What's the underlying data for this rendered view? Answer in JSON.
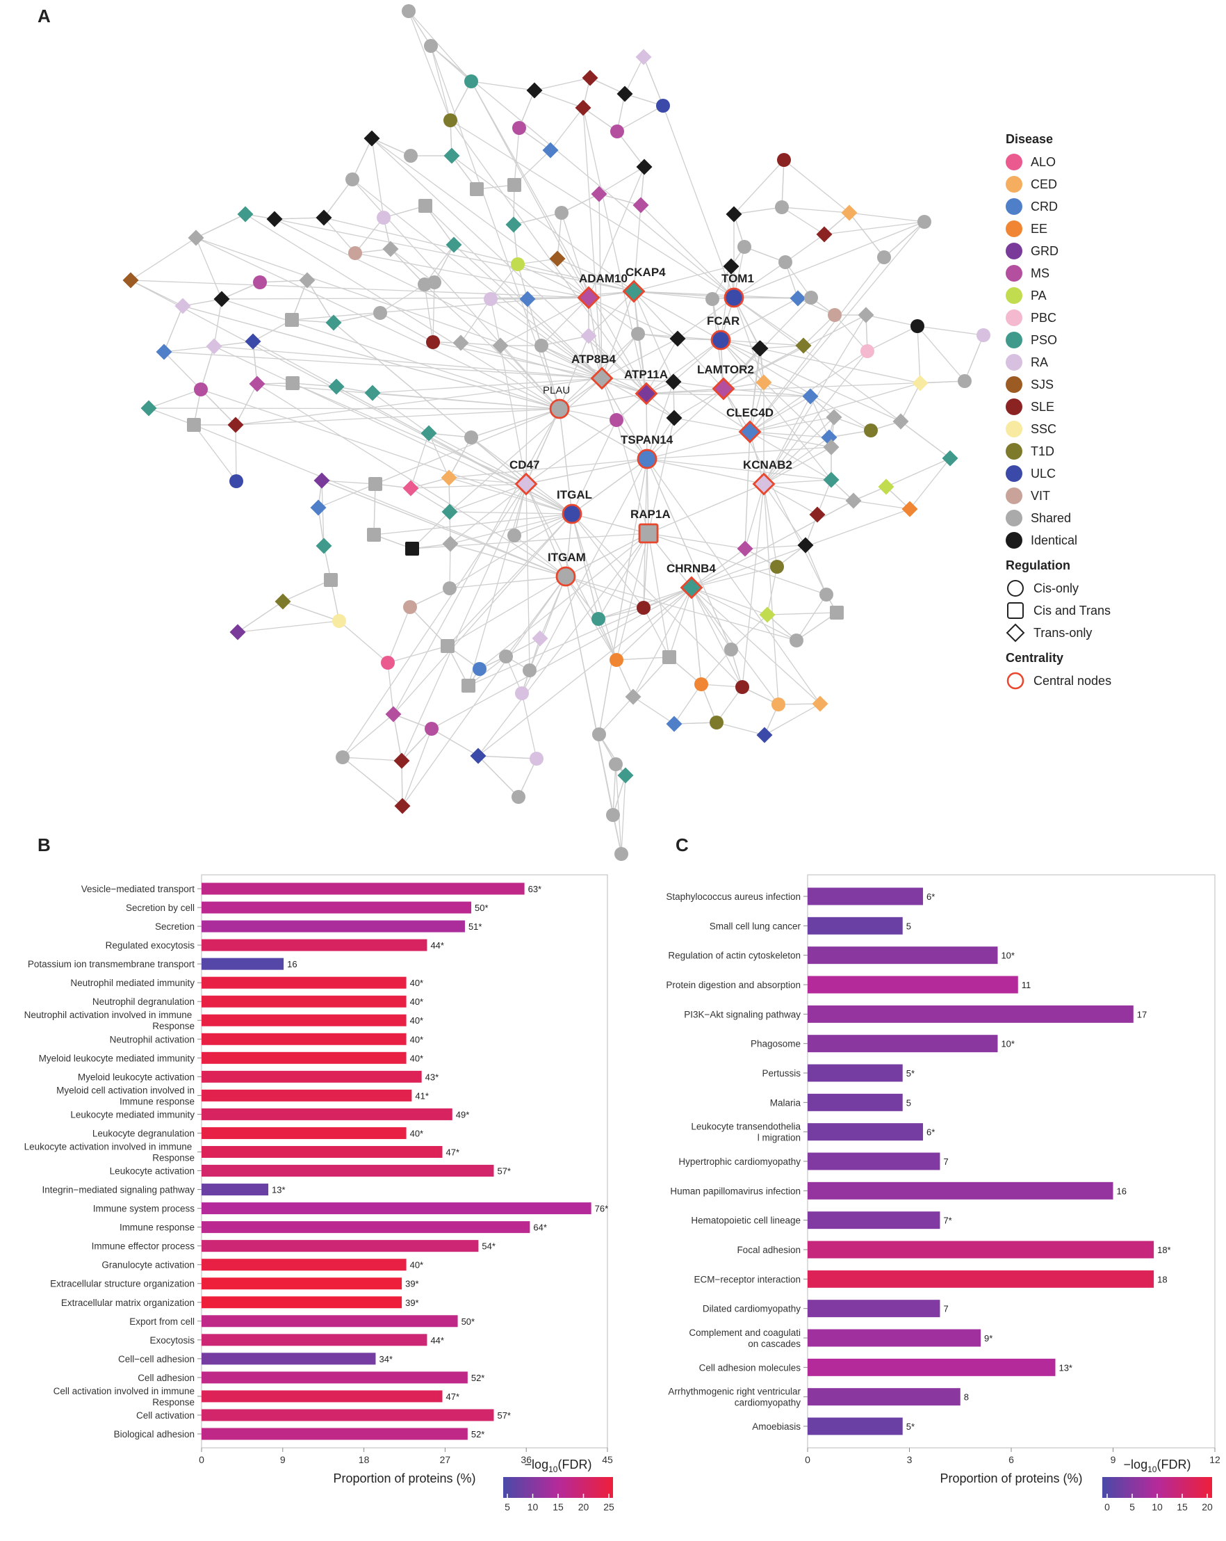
{
  "panel_labels": {
    "a": "A",
    "b": "B",
    "c": "C"
  },
  "network": {
    "central_nodes": [
      {
        "label": "ADAM10",
        "shape": "diamond",
        "fill": "#b44fa0"
      },
      {
        "label": "CKAP4",
        "shape": "diamond",
        "fill": "#3f9a8c"
      },
      {
        "label": "TOM1",
        "shape": "circle",
        "fill": "#3b4aa8"
      },
      {
        "label": "FCAR",
        "shape": "circle",
        "fill": "#3b4aa8"
      },
      {
        "label": "ATP8B4",
        "shape": "diamond",
        "fill": "#aaaaaa"
      },
      {
        "label": "ATP11A",
        "shape": "diamond",
        "fill": "#7a3a9a"
      },
      {
        "label": "LAMTOR2",
        "shape": "diamond",
        "fill": "#b44fa0"
      },
      {
        "label": "PLAU",
        "shape": "circle",
        "fill": "#aaaaaa"
      },
      {
        "label": "CLEC4D",
        "shape": "diamond",
        "fill": "#4f7fc9"
      },
      {
        "label": "TSPAN14",
        "shape": "circle",
        "fill": "#4f7fc9"
      },
      {
        "label": "CD47",
        "shape": "diamond",
        "fill": "#d7c0e0"
      },
      {
        "label": "KCNAB2",
        "shape": "diamond",
        "fill": "#d7c0e0"
      },
      {
        "label": "ITGAL",
        "shape": "circle",
        "fill": "#3b4aa8"
      },
      {
        "label": "RAP1A",
        "shape": "square",
        "fill": "#aaaaaa"
      },
      {
        "label": "ITGAM",
        "shape": "circle",
        "fill": "#aaaaaa"
      },
      {
        "label": "CHRNB4",
        "shape": "diamond",
        "fill": "#3f9a8c"
      }
    ]
  },
  "legend": {
    "disease_title": "Disease",
    "diseases": [
      {
        "name": "ALO",
        "color": "#ea5a8f"
      },
      {
        "name": "CED",
        "color": "#f5ad5f"
      },
      {
        "name": "CRD",
        "color": "#4f7fc9"
      },
      {
        "name": "EE",
        "color": "#f08633"
      },
      {
        "name": "GRD",
        "color": "#7a3a9a"
      },
      {
        "name": "MS",
        "color": "#b44fa0"
      },
      {
        "name": "PA",
        "color": "#c2dc4f"
      },
      {
        "name": "PBC",
        "color": "#f4b8cf"
      },
      {
        "name": "PSO",
        "color": "#3f9a8c"
      },
      {
        "name": "RA",
        "color": "#d7c0e0"
      },
      {
        "name": "SJS",
        "color": "#9c5b22"
      },
      {
        "name": "SLE",
        "color": "#8b2323"
      },
      {
        "name": "SSC",
        "color": "#f8eaa0"
      },
      {
        "name": "T1D",
        "color": "#7d7a2c"
      },
      {
        "name": "ULC",
        "color": "#3b4aa8"
      },
      {
        "name": "VIT",
        "color": "#c9a39a"
      },
      {
        "name": "Shared",
        "color": "#aaaaaa"
      },
      {
        "name": "Identical",
        "color": "#1a1a1a"
      }
    ],
    "regulation_title": "Regulation",
    "regulation": [
      {
        "name": "Cis-only",
        "shape": "circle"
      },
      {
        "name": "Cis and Trans",
        "shape": "square"
      },
      {
        "name": "Trans-only",
        "shape": "diamond"
      }
    ],
    "centrality_title": "Centrality",
    "centrality": [
      {
        "name": "Central nodes"
      }
    ]
  },
  "chart_data": [
    {
      "type": "bar",
      "orientation": "horizontal",
      "panel": "B",
      "categories": [
        "Vesicle−mediated transport",
        "Secretion by cell",
        "Secretion",
        "Regulated exocytosis",
        "Potassium ion transmembrane transport",
        "Neutrophil mediated immunity",
        "Neutrophil degranulation",
        "Neutrophil activation involved in immune Response",
        "Neutrophil activation",
        "Myeloid leukocyte mediated immunity",
        "Myeloid leukocyte activation",
        "Myeloid cell activation involved in Immune response",
        "Leukocyte mediated immunity",
        "Leukocyte degranulation",
        "Leukocyte activation involved in immune Response",
        "Leukocyte activation",
        "Integrin−mediated signaling pathway",
        "Immune system process",
        "Immune response",
        "Immune effector process",
        "Granulocyte activation",
        "Extracellular structure organization",
        "Extracellular matrix organization",
        "Export from cell",
        "Exocytosis",
        "Cell−cell adhesion",
        "Cell adhesion",
        "Cell activation involved in immune Response",
        "Cell activation",
        "Biological adhesion"
      ],
      "values": [
        35.8,
        29.9,
        29.2,
        25.0,
        9.1,
        22.7,
        22.7,
        22.7,
        22.7,
        22.7,
        24.4,
        23.3,
        27.8,
        22.7,
        26.7,
        32.4,
        7.4,
        43.2,
        36.4,
        30.7,
        22.7,
        22.2,
        22.2,
        28.4,
        25.0,
        19.3,
        29.5,
        26.7,
        32.4,
        29.5
      ],
      "counts": [
        "63*",
        "50*",
        "51*",
        "44*",
        "16",
        "40*",
        "40*",
        "40*",
        "40*",
        "40*",
        "43*",
        "41*",
        "49*",
        "40*",
        "47*",
        "57*",
        "13*",
        "76*",
        "64*",
        "54*",
        "40*",
        "39*",
        "39*",
        "50*",
        "44*",
        "34*",
        "52*",
        "47*",
        "57*",
        "52*"
      ],
      "neg_log10_fdr": [
        17,
        16,
        14,
        21,
        6,
        24,
        24,
        24,
        24,
        24,
        22,
        23,
        21,
        24,
        22,
        20,
        8,
        15,
        16,
        19,
        24,
        25,
        25,
        17,
        19,
        9,
        17,
        22,
        20,
        17
      ],
      "xlabel": "Proportion of proteins (%)",
      "xlim": [
        0,
        45
      ],
      "xticks": [
        "0",
        "9",
        "18",
        "27",
        "36",
        "45"
      ],
      "colorbar": {
        "title": "−log10(FDR)",
        "title_prefix": "−log",
        "title_sub": "10",
        "title_suffix": "(FDR)",
        "ticks": [
          "5",
          "10",
          "15",
          "20",
          "25"
        ],
        "range": [
          5,
          25
        ]
      }
    },
    {
      "type": "bar",
      "orientation": "horizontal",
      "panel": "C",
      "categories": [
        "Staphylococcus aureus infection",
        "Small cell lung cancer",
        "Regulation of actin cytoskeleton",
        "Protein digestion and absorption",
        "PI3K−Akt signaling pathway",
        "Phagosome",
        "Pertussis",
        "Malaria",
        "Leukocyte transendothelial migration",
        "Hypertrophic cardiomyopathy",
        "Human papillomavirus infection",
        "Hematopoietic cell lineage",
        "Focal adhesion",
        "ECM−receptor interaction",
        "Dilated cardiomyopathy",
        "Complement and coagulation cascades",
        "Cell adhesion molecules",
        "Arrhythmogenic right ventricular cardiomyopathy",
        "Amoebiasis"
      ],
      "values": [
        3.4,
        2.8,
        5.6,
        6.2,
        9.6,
        5.6,
        2.8,
        2.8,
        3.4,
        3.9,
        9.0,
        3.9,
        10.2,
        10.2,
        3.9,
        5.1,
        7.3,
        4.5,
        2.8
      ],
      "counts": [
        "6*",
        "5",
        "10*",
        "11",
        "17",
        "10*",
        "5*",
        "5",
        "6*",
        "7",
        "16",
        "7*",
        "18*",
        "18",
        "7",
        "9*",
        "13*",
        "8",
        "5*"
      ],
      "neg_log10_fdr": [
        5,
        3,
        6,
        10,
        7,
        6,
        4,
        4,
        4,
        5,
        7,
        5,
        13,
        17,
        5,
        8,
        10,
        6,
        3
      ],
      "xlabel": "Proportion of proteins (%)",
      "xlim": [
        0,
        12
      ],
      "xticks": [
        "0",
        "3",
        "6",
        "9",
        "12"
      ],
      "colorbar": {
        "title": "−log10(FDR)",
        "title_prefix": "−log",
        "title_sub": "10",
        "title_suffix": "(FDR)",
        "ticks": [
          "0",
          "5",
          "10",
          "15",
          "20"
        ],
        "range": [
          0,
          20
        ]
      }
    }
  ]
}
